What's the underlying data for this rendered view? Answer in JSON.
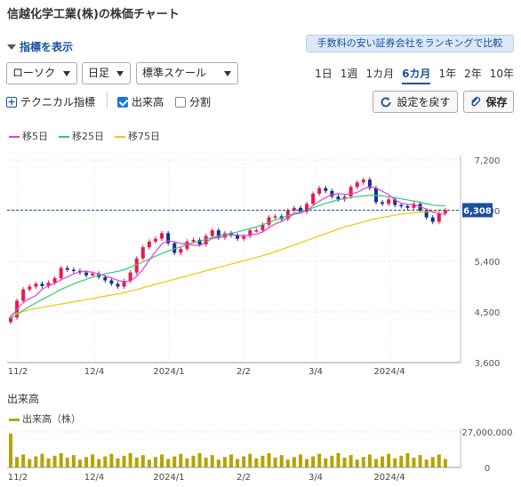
{
  "header": {
    "title": "信越化学工業(株)の株価チャート"
  },
  "indicator_toggle": "指標を表示",
  "ranking_link": "手数料の安い証券会社をランキングで比較",
  "selects": {
    "chart_type": "ローソク",
    "interval": "日足",
    "scale": "標準スケール"
  },
  "periods": [
    "1日",
    "1週",
    "1カ月",
    "6カ月",
    "1年",
    "2年",
    "10年"
  ],
  "active_period": "6カ月",
  "options": {
    "technical": "テクニカル指標",
    "volume": "出来高",
    "split": "分割"
  },
  "buttons": {
    "reset": "設定を戻す",
    "save": "保存"
  },
  "ma_legend": [
    {
      "label": "移5日",
      "color": "#e040e0"
    },
    {
      "label": "移25日",
      "color": "#2ecc71"
    },
    {
      "label": "移75日",
      "color": "#f1c40f"
    }
  ],
  "volume": {
    "title": "出来高",
    "legend": "出来高（株）",
    "color": "#b5a300"
  },
  "colors": {
    "up": "#e8194f",
    "down": "#1c2f8a",
    "current": "#1a4fa0"
  },
  "chart_data": {
    "type": "candlestick",
    "y_ticks": [
      "7,200",
      "6,300",
      "5,400",
      "4,500",
      "3,600"
    ],
    "ylim": [
      3600,
      7200
    ],
    "x_labels": [
      "11/2",
      "12/4",
      "2024/1",
      "2/2",
      "3/4",
      "2024/4"
    ],
    "current_price": 6308,
    "current_label": "6,308",
    "volume_ticks": [
      "27,000,000",
      "0"
    ],
    "volume_ylim": [
      0,
      27000000
    ],
    "close_series": [
      4400,
      4700,
      4900,
      4950,
      5000,
      4960,
      5020,
      5100,
      5280,
      5250,
      5230,
      5200,
      5150,
      5180,
      5120,
      5060,
      5000,
      4950,
      5050,
      5200,
      5450,
      5650,
      5750,
      5800,
      5900,
      5720,
      5550,
      5620,
      5750,
      5780,
      5700,
      5850,
      5950,
      5820,
      5900,
      5860,
      5800,
      5850,
      5950,
      5950,
      6050,
      6180,
      6200,
      6150,
      6300,
      6350,
      6280,
      6420,
      6600,
      6700,
      6650,
      6550,
      6500,
      6550,
      6720,
      6800,
      6850,
      6700,
      6450,
      6420,
      6500,
      6400,
      6380,
      6350,
      6420,
      6300,
      6180,
      6100,
      6250,
      6308
    ],
    "ma25_series": [
      4380,
      4450,
      4530,
      4600,
      4660,
      4720,
      4780,
      4840,
      4900,
      4950,
      5000,
      5040,
      5080,
      5120,
      5150,
      5180,
      5200,
      5220,
      5250,
      5290,
      5340,
      5390,
      5440,
      5490,
      5540,
      5580,
      5620,
      5660,
      5700,
      5730,
      5760,
      5790,
      5820,
      5850,
      5880,
      5900,
      5920,
      5950,
      5980,
      6010,
      6050,
      6090,
      6130,
      6170,
      6210,
      6250,
      6280,
      6310,
      6350,
      6390,
      6430,
      6460,
      6490,
      6510,
      6530,
      6550,
      6560,
      6570,
      6570,
      6560,
      6550,
      6530,
      6510,
      6490,
      6470,
      6450,
      6420,
      6400,
      6390,
      6380
    ],
    "ma75_series": [
      4450,
      4480,
      4510,
      4540,
      4560,
      4580,
      4600,
      4620,
      4640,
      4660,
      4680,
      4700,
      4720,
      4740,
      4760,
      4780,
      4800,
      4820,
      4840,
      4870,
      4900,
      4930,
      4960,
      4990,
      5020,
      5050,
      5080,
      5110,
      5140,
      5170,
      5200,
      5230,
      5260,
      5290,
      5320,
      5350,
      5380,
      5410,
      5440,
      5470,
      5500,
      5530,
      5570,
      5610,
      5650,
      5690,
      5730,
      5770,
      5810,
      5850,
      5890,
      5930,
      5970,
      6010,
      6040,
      6070,
      6100,
      6130,
      6160,
      6180,
      6200,
      6220,
      6240,
      6250,
      6260,
      6270,
      6280,
      6290,
      6300,
      6305
    ]
  }
}
